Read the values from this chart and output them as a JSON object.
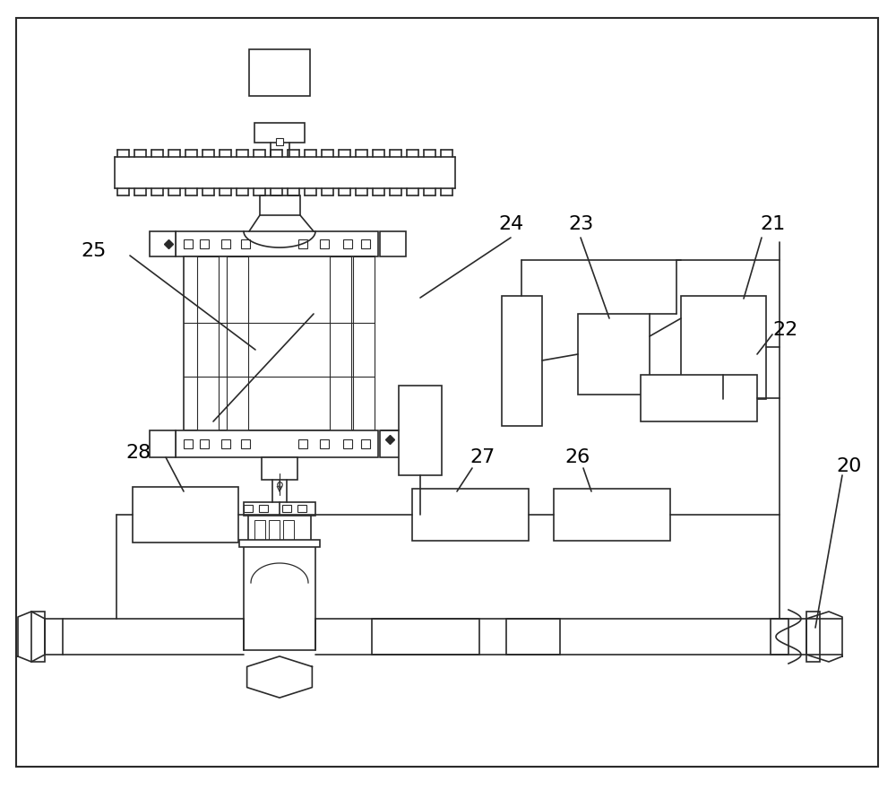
{
  "bg_color": "#ffffff",
  "line_color": "#2a2a2a",
  "label_color": "#000000",
  "fig_width": 10.0,
  "fig_height": 8.81,
  "dpi": 100
}
